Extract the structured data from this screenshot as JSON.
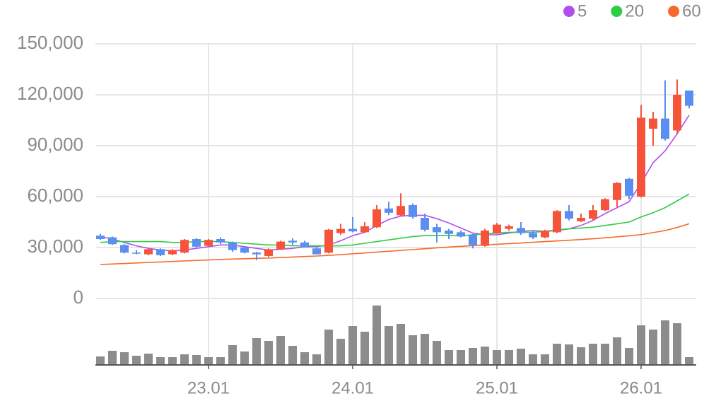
{
  "chart_data": {
    "type": "candlestick",
    "categories": [
      null,
      null,
      null,
      null,
      null,
      null,
      null,
      null,
      null,
      "23.01",
      null,
      null,
      null,
      null,
      null,
      null,
      null,
      null,
      null,
      null,
      null,
      "24.01",
      null,
      null,
      null,
      null,
      null,
      null,
      null,
      null,
      null,
      null,
      null,
      "25.01",
      null,
      null,
      null,
      null,
      null,
      null,
      null,
      null,
      null,
      null,
      null,
      "26.01",
      null,
      null,
      null,
      null
    ],
    "open": [
      37000,
      36000,
      31500,
      27000,
      26000,
      29000,
      26000,
      27000,
      35000,
      31000,
      35000,
      33000,
      30000,
      27000,
      25000,
      29000,
      34000,
      33000,
      29500,
      27000,
      38500,
      41000,
      39000,
      42000,
      53000,
      49000,
      55000,
      47500,
      42000,
      40000,
      39000,
      37500,
      31000,
      38500,
      41000,
      41500,
      38500,
      36000,
      39000,
      51500,
      45500,
      47000,
      52000,
      58000,
      70500,
      60000,
      100000,
      106000,
      99000,
      122500
    ],
    "high": [
      38000,
      36500,
      32000,
      28500,
      29500,
      29500,
      29000,
      35000,
      35500,
      35000,
      36000,
      33500,
      30500,
      27500,
      29500,
      34000,
      35500,
      34000,
      30500,
      41000,
      44000,
      48000,
      45000,
      55000,
      57000,
      62000,
      56000,
      50000,
      44000,
      41000,
      40000,
      38000,
      41000,
      44500,
      43500,
      45000,
      40000,
      40500,
      52000,
      55000,
      50000,
      55000,
      59000,
      68500,
      71000,
      114000,
      110000,
      128500,
      129000,
      122500
    ],
    "low": [
      34500,
      31500,
      26500,
      26000,
      25500,
      25000,
      25500,
      26500,
      30000,
      30500,
      32000,
      27500,
      26500,
      22500,
      24500,
      28500,
      31500,
      30000,
      26000,
      26500,
      37500,
      39000,
      38500,
      41500,
      49000,
      48500,
      47000,
      39500,
      33000,
      35000,
      36000,
      29500,
      30500,
      38000,
      40000,
      37500,
      35000,
      35500,
      38500,
      46000,
      45000,
      46000,
      51500,
      54000,
      58500,
      59500,
      90000,
      93000,
      97000,
      112000
    ],
    "close": [
      35000,
      32000,
      27000,
      26500,
      29000,
      25500,
      28500,
      34500,
      30500,
      34500,
      33000,
      28500,
      27000,
      26000,
      29000,
      33500,
      33000,
      30000,
      26000,
      40500,
      41000,
      39500,
      42500,
      52500,
      50500,
      54500,
      48000,
      40500,
      39000,
      38000,
      36500,
      31500,
      40000,
      43500,
      42500,
      38500,
      36000,
      40000,
      51500,
      47000,
      47500,
      52000,
      58500,
      68000,
      60500,
      106500,
      106000,
      94000,
      120000,
      113500
    ],
    "up_color": "#f5533a",
    "down_color": "#5a8ef0",
    "series": [
      {
        "name": "5",
        "color": "#b04ff0",
        "values": [
          36500,
          35000,
          33000,
          31000,
          29500,
          28500,
          28000,
          28500,
          29500,
          30500,
          31500,
          31500,
          30500,
          29500,
          28500,
          29000,
          29500,
          30500,
          30500,
          31500,
          34000,
          37000,
          39000,
          43000,
          46500,
          48500,
          49000,
          49000,
          47000,
          44500,
          41500,
          38500,
          37500,
          37500,
          38500,
          39500,
          40000,
          39500,
          40000,
          41000,
          43000,
          46000,
          50000,
          53500,
          57000,
          68000,
          80000,
          87000,
          97000,
          108000
        ]
      },
      {
        "name": "20",
        "color": "#2fcc45",
        "values": [
          33000,
          33500,
          33500,
          33500,
          33500,
          33500,
          33000,
          33000,
          33500,
          33500,
          33500,
          33000,
          32500,
          32000,
          31500,
          31500,
          31000,
          31000,
          31000,
          31000,
          31000,
          31500,
          32500,
          33500,
          34500,
          35500,
          36500,
          37000,
          37000,
          37000,
          37000,
          37500,
          38000,
          38500,
          39000,
          39000,
          39000,
          39500,
          40500,
          41000,
          41500,
          42000,
          43000,
          44000,
          45000,
          48000,
          50500,
          53500,
          57500,
          61500
        ]
      },
      {
        "name": "60",
        "color": "#f56a2c",
        "values": [
          20000,
          20300,
          20600,
          20900,
          21200,
          21500,
          21800,
          22100,
          22400,
          22700,
          23000,
          23200,
          23400,
          23600,
          23800,
          24100,
          24400,
          24700,
          25000,
          25400,
          25800,
          26300,
          26800,
          27300,
          27800,
          28300,
          28800,
          29300,
          29800,
          30300,
          30700,
          31100,
          31500,
          31900,
          32300,
          32700,
          33100,
          33500,
          33900,
          34300,
          34700,
          35200,
          35700,
          36300,
          36900,
          37600,
          38800,
          40000,
          41800,
          44000
        ]
      }
    ],
    "volume": {
      "color": "#8c8c8c",
      "values": [
        12,
        20,
        18,
        13,
        16,
        11,
        11,
        15,
        14,
        11,
        11,
        28,
        19,
        38,
        34,
        41,
        27,
        18,
        15,
        50,
        37,
        55,
        47,
        84,
        55,
        58,
        42,
        44,
        34,
        21,
        21,
        24,
        26,
        21,
        21,
        23,
        15,
        15,
        30,
        29,
        25,
        30,
        30,
        39,
        24,
        56,
        50,
        63,
        59,
        11
      ]
    },
    "ylim": [
      0,
      150000
    ],
    "yticks": [
      0,
      {
        "value": 30000,
        "label": "30,000"
      },
      {
        "value": 60000,
        "label": "60,000"
      },
      {
        "value": 90000,
        "label": "90,000"
      },
      {
        "value": 120000,
        "label": "120,000"
      },
      {
        "value": 150000,
        "label": "150,000"
      }
    ],
    "grid": true,
    "legend": "top-right"
  }
}
